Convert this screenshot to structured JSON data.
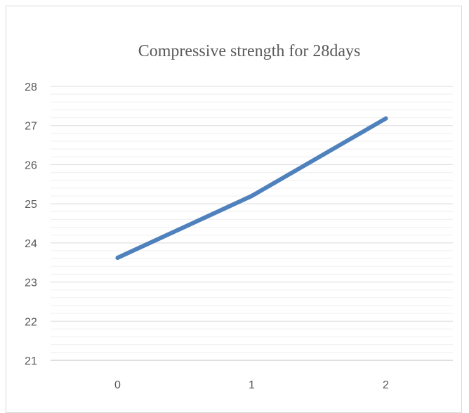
{
  "chart_data": {
    "type": "line",
    "title": "Compressive strength for 28days",
    "xlabel": "",
    "ylabel": "",
    "x": [
      "0",
      "1",
      "2"
    ],
    "series": [
      {
        "values": [
          23.62,
          25.2,
          27.18
        ]
      }
    ],
    "ylim": [
      21,
      28
    ],
    "yticks": [
      "21",
      "22",
      "23",
      "24",
      "25",
      "26",
      "27",
      "28"
    ],
    "major_grid": true,
    "minor_grid": true,
    "legend": "none",
    "line_color": "#4F81BD",
    "grid_color": "#d9d9d9",
    "minor_grid_color": "#efefef"
  }
}
